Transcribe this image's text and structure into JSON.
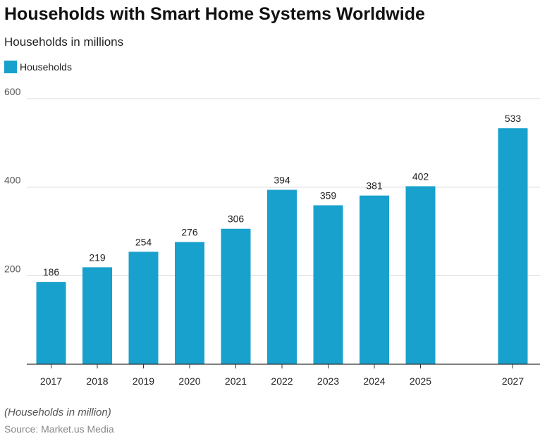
{
  "chart_data": {
    "type": "bar",
    "title": "Households with Smart Home Systems Worldwide",
    "subtitle": "Households in millions",
    "categories": [
      "2017",
      "2018",
      "2019",
      "2020",
      "2021",
      "2022",
      "2023",
      "2024",
      "2025",
      "2027"
    ],
    "series": [
      {
        "name": "Households",
        "values": [
          186,
          219,
          254,
          276,
          306,
          394,
          359,
          381,
          402,
          533
        ],
        "color": "#18a1cd"
      }
    ],
    "ylim": [
      0,
      600
    ],
    "yticks": [
      "200",
      "400",
      "600"
    ],
    "grid": true,
    "legend": "top-left",
    "data_labels": true
  },
  "footer": {
    "note": "(Households in million)",
    "source": "Source: Market.us Media"
  }
}
